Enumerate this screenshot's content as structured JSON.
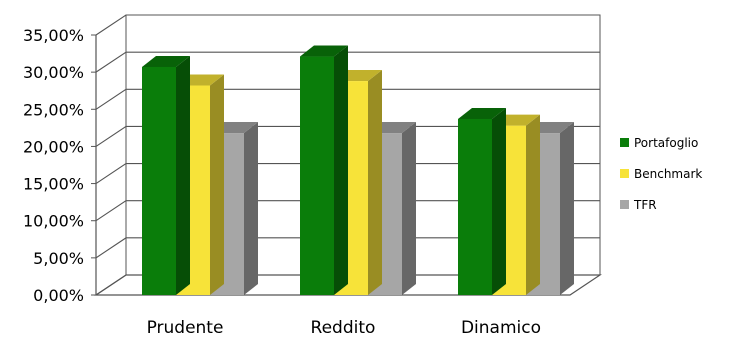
{
  "chart_data": {
    "type": "bar",
    "categories": [
      "Prudente",
      "Reddito",
      "Dinamico"
    ],
    "series": [
      {
        "name": "Portafoglio",
        "values": [
          30.7,
          32.1,
          23.7
        ],
        "color": "#0a7d0a"
      },
      {
        "name": "Benchmark",
        "values": [
          28.2,
          28.8,
          22.8
        ],
        "color": "#f7e339"
      },
      {
        "name": "TFR",
        "values": [
          21.8,
          21.8,
          21.8
        ],
        "color": "#a6a6a6"
      }
    ],
    "y_ticks": [
      "0,00%",
      "5,00%",
      "10,00%",
      "15,00%",
      "20,00%",
      "25,00%",
      "30,00%",
      "35,00%"
    ],
    "ylim": [
      0,
      35
    ],
    "style": "3d-clustered-bar",
    "grid": true,
    "legend_position": "right"
  }
}
